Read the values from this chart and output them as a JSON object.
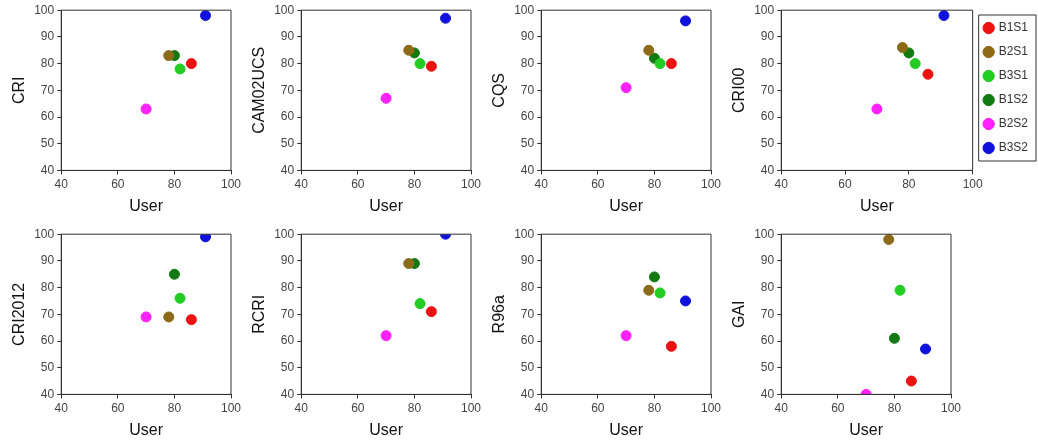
{
  "chart_data": [
    {
      "type": "scatter",
      "xlabel": "User",
      "ylabel": "CRI",
      "xlim": [
        40,
        100
      ],
      "ylim": [
        40,
        100
      ],
      "xticks": [
        40,
        60,
        80,
        100
      ],
      "yticks": [
        40,
        50,
        60,
        70,
        80,
        90,
        100
      ],
      "grid": false,
      "legend": false,
      "marker": "circle",
      "series": [
        {
          "color": "#ee1111",
          "x": [
            86
          ],
          "values": [
            80
          ]
        },
        {
          "color": "#8c6a17",
          "x": [
            78
          ],
          "values": [
            83
          ]
        },
        {
          "color": "#22cc22",
          "x": [
            82
          ],
          "values": [
            78
          ]
        },
        {
          "color": "#137a13",
          "x": [
            80
          ],
          "values": [
            83
          ]
        },
        {
          "color": "#ff22ff",
          "x": [
            70
          ],
          "values": [
            63
          ]
        },
        {
          "color": "#1111dd",
          "x": [
            91
          ],
          "values": [
            98
          ]
        }
      ]
    },
    {
      "type": "scatter",
      "xlabel": "User",
      "ylabel": "CAM02UCS",
      "xlim": [
        40,
        100
      ],
      "ylim": [
        40,
        100
      ],
      "xticks": [
        40,
        60,
        80,
        100
      ],
      "yticks": [
        40,
        50,
        60,
        70,
        80,
        90,
        100
      ],
      "grid": false,
      "legend": false,
      "marker": "circle",
      "series": [
        {
          "color": "#ee1111",
          "x": [
            86
          ],
          "values": [
            79
          ]
        },
        {
          "color": "#8c6a17",
          "x": [
            78
          ],
          "values": [
            85
          ]
        },
        {
          "color": "#22cc22",
          "x": [
            82
          ],
          "values": [
            80
          ]
        },
        {
          "color": "#137a13",
          "x": [
            80
          ],
          "values": [
            84
          ]
        },
        {
          "color": "#ff22ff",
          "x": [
            70
          ],
          "values": [
            67
          ]
        },
        {
          "color": "#1111dd",
          "x": [
            91
          ],
          "values": [
            97
          ]
        }
      ]
    },
    {
      "type": "scatter",
      "xlabel": "User",
      "ylabel": "CQS",
      "xlim": [
        40,
        100
      ],
      "ylim": [
        40,
        100
      ],
      "xticks": [
        40,
        60,
        80,
        100
      ],
      "yticks": [
        40,
        50,
        60,
        70,
        80,
        90,
        100
      ],
      "grid": false,
      "legend": false,
      "marker": "circle",
      "series": [
        {
          "color": "#ee1111",
          "x": [
            86
          ],
          "values": [
            80
          ]
        },
        {
          "color": "#8c6a17",
          "x": [
            78
          ],
          "values": [
            85
          ]
        },
        {
          "color": "#22cc22",
          "x": [
            82
          ],
          "values": [
            80
          ]
        },
        {
          "color": "#137a13",
          "x": [
            80
          ],
          "values": [
            82
          ]
        },
        {
          "color": "#ff22ff",
          "x": [
            70
          ],
          "values": [
            71
          ]
        },
        {
          "color": "#1111dd",
          "x": [
            91
          ],
          "values": [
            96
          ]
        }
      ]
    },
    {
      "type": "scatter",
      "xlabel": "User",
      "ylabel": "CRI00",
      "xlim": [
        40,
        100
      ],
      "ylim": [
        40,
        100
      ],
      "xticks": [
        40,
        60,
        80,
        100
      ],
      "yticks": [
        40,
        50,
        60,
        70,
        80,
        90,
        100
      ],
      "grid": false,
      "legend": "right",
      "marker": "circle",
      "series": [
        {
          "name": "B1S1",
          "color": "#ee1111",
          "x": [
            86
          ],
          "values": [
            76
          ]
        },
        {
          "name": "B2S1",
          "color": "#8c6a17",
          "x": [
            78
          ],
          "values": [
            86
          ]
        },
        {
          "name": "B3S1",
          "color": "#22cc22",
          "x": [
            82
          ],
          "values": [
            80
          ]
        },
        {
          "name": "B1S2",
          "color": "#137a13",
          "x": [
            80
          ],
          "values": [
            84
          ]
        },
        {
          "name": "B2S2",
          "color": "#ff22ff",
          "x": [
            70
          ],
          "values": [
            63
          ]
        },
        {
          "name": "B3S2",
          "color": "#1111dd",
          "x": [
            91
          ],
          "values": [
            98
          ]
        }
      ]
    },
    {
      "type": "scatter",
      "xlabel": "User",
      "ylabel": "CRI2012",
      "xlim": [
        40,
        100
      ],
      "ylim": [
        40,
        100
      ],
      "xticks": [
        40,
        60,
        80,
        100
      ],
      "yticks": [
        40,
        50,
        60,
        70,
        80,
        90,
        100
      ],
      "grid": false,
      "legend": false,
      "marker": "circle",
      "series": [
        {
          "color": "#ee1111",
          "x": [
            86
          ],
          "values": [
            68
          ]
        },
        {
          "color": "#8c6a17",
          "x": [
            78
          ],
          "values": [
            69
          ]
        },
        {
          "color": "#22cc22",
          "x": [
            82
          ],
          "values": [
            76
          ]
        },
        {
          "color": "#137a13",
          "x": [
            80
          ],
          "values": [
            85
          ]
        },
        {
          "color": "#ff22ff",
          "x": [
            70
          ],
          "values": [
            69
          ]
        },
        {
          "color": "#1111dd",
          "x": [
            91
          ],
          "values": [
            99
          ]
        }
      ]
    },
    {
      "type": "scatter",
      "xlabel": "User",
      "ylabel": "RCRI",
      "xlim": [
        40,
        100
      ],
      "ylim": [
        40,
        100
      ],
      "xticks": [
        40,
        60,
        80,
        100
      ],
      "yticks": [
        40,
        50,
        60,
        70,
        80,
        90,
        100
      ],
      "grid": false,
      "legend": false,
      "marker": "circle",
      "series": [
        {
          "color": "#ee1111",
          "x": [
            86
          ],
          "values": [
            71
          ]
        },
        {
          "color": "#8c6a17",
          "x": [
            78
          ],
          "values": [
            89
          ]
        },
        {
          "color": "#22cc22",
          "x": [
            82
          ],
          "values": [
            74
          ]
        },
        {
          "color": "#137a13",
          "x": [
            80
          ],
          "values": [
            89
          ]
        },
        {
          "color": "#ff22ff",
          "x": [
            70
          ],
          "values": [
            62
          ]
        },
        {
          "color": "#1111dd",
          "x": [
            91
          ],
          "values": [
            100
          ]
        }
      ]
    },
    {
      "type": "scatter",
      "xlabel": "User",
      "ylabel": "R96a",
      "xlim": [
        40,
        100
      ],
      "ylim": [
        40,
        100
      ],
      "xticks": [
        40,
        60,
        80,
        100
      ],
      "yticks": [
        40,
        50,
        60,
        70,
        80,
        90,
        100
      ],
      "grid": false,
      "legend": false,
      "marker": "circle",
      "series": [
        {
          "color": "#ee1111",
          "x": [
            86
          ],
          "values": [
            58
          ]
        },
        {
          "color": "#8c6a17",
          "x": [
            78
          ],
          "values": [
            79
          ]
        },
        {
          "color": "#22cc22",
          "x": [
            82
          ],
          "values": [
            78
          ]
        },
        {
          "color": "#137a13",
          "x": [
            80
          ],
          "values": [
            84
          ]
        },
        {
          "color": "#ff22ff",
          "x": [
            70
          ],
          "values": [
            62
          ]
        },
        {
          "color": "#1111dd",
          "x": [
            91
          ],
          "values": [
            75
          ]
        }
      ]
    },
    {
      "type": "scatter",
      "xlabel": "User",
      "ylabel": "GAI",
      "xlim": [
        40,
        100
      ],
      "ylim": [
        40,
        100
      ],
      "xticks": [
        40,
        60,
        80,
        100
      ],
      "yticks": [
        40,
        50,
        60,
        70,
        80,
        90,
        100
      ],
      "grid": false,
      "legend": false,
      "marker": "circle",
      "series": [
        {
          "color": "#ee1111",
          "x": [
            86
          ],
          "values": [
            45
          ]
        },
        {
          "color": "#8c6a17",
          "x": [
            78
          ],
          "values": [
            98
          ]
        },
        {
          "color": "#22cc22",
          "x": [
            82
          ],
          "values": [
            79
          ]
        },
        {
          "color": "#137a13",
          "x": [
            80
          ],
          "values": [
            61
          ]
        },
        {
          "color": "#ff22ff",
          "x": [
            70
          ],
          "values": [
            40
          ]
        },
        {
          "color": "#1111dd",
          "x": [
            91
          ],
          "values": [
            57
          ]
        }
      ]
    }
  ]
}
